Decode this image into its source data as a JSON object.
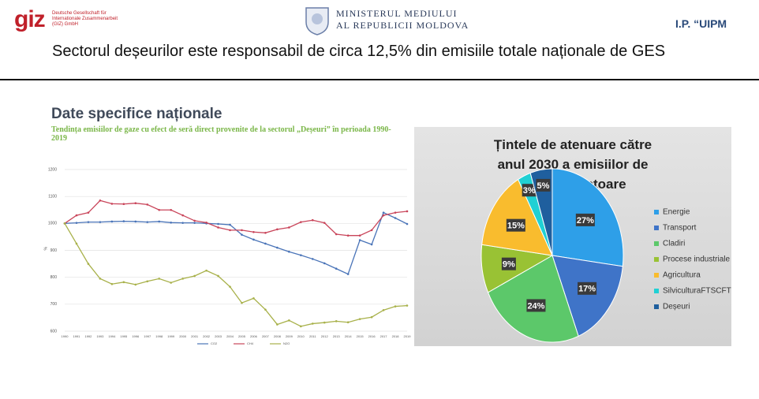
{
  "header": {
    "logo": "giz",
    "logo_text": "Deutsche Gesellschaft für Internationale Zusammenarbeit (GIZ) GmbH",
    "ministry_line1": "MINISTERUL MEDIULUI",
    "ministry_line2": "AL REPUBLICII MOLDOVA",
    "right": "I.P. “UIPM"
  },
  "slide_title": "Sectorul deșeurilor este responsabil de circa 12,5% din emisiile totale naționale de GES",
  "section_title": "Date specifice naționale",
  "chart_data": [
    {
      "type": "line",
      "title": "Tendința emisiilor de gaze cu efect de seră direct provenite de la sectorul „Deșeuri” în perioada 1990-2019",
      "y_label": "%",
      "x": [
        1990,
        1991,
        1992,
        1993,
        1994,
        1995,
        1996,
        1997,
        1998,
        1999,
        2000,
        2001,
        2002,
        2003,
        2004,
        2005,
        2006,
        2007,
        2008,
        2009,
        2010,
        2011,
        2012,
        2013,
        2014,
        2015,
        2016,
        2017,
        2018,
        2019
      ],
      "series": [
        {
          "name": "CO2",
          "color": "#4a74b8",
          "values": [
            1000,
            1002,
            1005,
            1005,
            1007,
            1008,
            1007,
            1005,
            1007,
            1003,
            1002,
            1002,
            1000,
            998,
            995,
            958,
            940,
            925,
            910,
            895,
            882,
            868,
            852,
            832,
            812,
            938,
            922,
            1040,
            1020,
            998
          ]
        },
        {
          "name": "CH4",
          "color": "#c9455a",
          "values": [
            1000,
            1030,
            1040,
            1085,
            1073,
            1072,
            1075,
            1070,
            1050,
            1050,
            1030,
            1010,
            1003,
            985,
            975,
            975,
            968,
            965,
            978,
            985,
            1005,
            1012,
            1002,
            960,
            955,
            955,
            975,
            1030,
            1040,
            1045
          ]
        },
        {
          "name": "N2O",
          "color": "#a8b14a",
          "values": [
            1000,
            925,
            850,
            795,
            775,
            782,
            773,
            785,
            795,
            780,
            795,
            805,
            825,
            805,
            765,
            705,
            722,
            680,
            625,
            640,
            618,
            628,
            632,
            637,
            633,
            645,
            652,
            678,
            692,
            695
          ]
        }
      ],
      "ylim": [
        600,
        1200
      ],
      "yticks": [
        600,
        700,
        800,
        900,
        1000,
        1100,
        1200
      ],
      "grid": true
    },
    {
      "type": "pie",
      "title": "Țintele de atenuare către anul 2030 a emisiilor de GES pe sectoare",
      "categories": [
        "Energie",
        "Transport",
        "Cladiri",
        "Procese industriale",
        "Agricultura",
        "SilviculturaFTSCFTS",
        "Deșeuri"
      ],
      "values": [
        27,
        17,
        24,
        9,
        15,
        3,
        5
      ],
      "value_labels": [
        "27%",
        "17%",
        "24%",
        "9%",
        "15%",
        "3%",
        "5%"
      ],
      "colors": [
        "#2e9fe8",
        "#3f74c8",
        "#5cc86a",
        "#99c234",
        "#f9bc2e",
        "#20d0d4",
        "#1f5f9e"
      ],
      "legend": "right"
    }
  ]
}
